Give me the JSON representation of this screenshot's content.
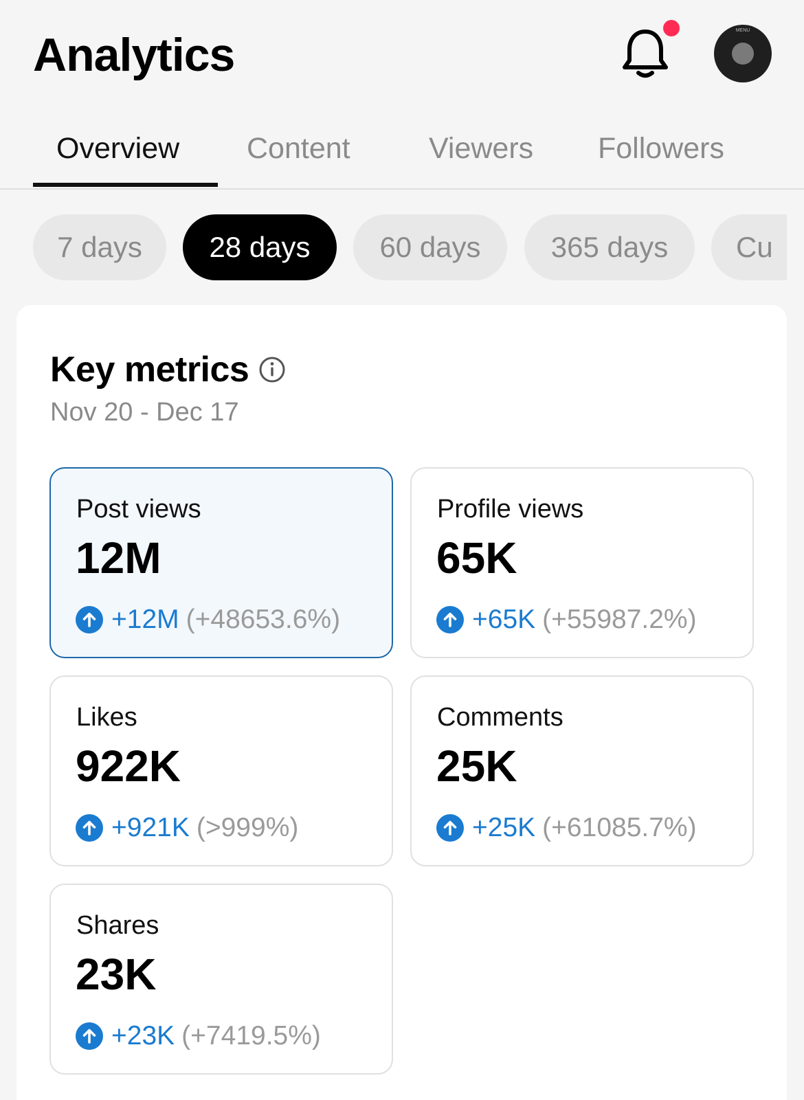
{
  "header": {
    "title": "Analytics",
    "notification_badge_color": "#fe2c55",
    "avatar_text": "MENU"
  },
  "tabs": [
    {
      "label": "Overview",
      "active": true
    },
    {
      "label": "Content",
      "active": false
    },
    {
      "label": "Viewers",
      "active": false
    },
    {
      "label": "Followers",
      "active": false
    }
  ],
  "date_chips": [
    {
      "label": "7 days",
      "selected": false
    },
    {
      "label": "28 days",
      "selected": true
    },
    {
      "label": "60 days",
      "selected": false
    },
    {
      "label": "365 days",
      "selected": false
    },
    {
      "label": "Cu",
      "selected": false
    }
  ],
  "key_metrics": {
    "title": "Key metrics",
    "date_range": "Nov 20 - Dec 17",
    "accent_color": "#1a7bd0",
    "items": [
      {
        "label": "Post views",
        "value": "12M",
        "delta": "+12M",
        "pct": "(+48653.6%)",
        "selected": true
      },
      {
        "label": "Profile views",
        "value": "65K",
        "delta": "+65K",
        "pct": "(+55987.2%)",
        "selected": false
      },
      {
        "label": "Likes",
        "value": "922K",
        "delta": "+921K",
        "pct": "(>999%)",
        "selected": false
      },
      {
        "label": "Comments",
        "value": "25K",
        "delta": "+25K",
        "pct": "(+61085.7%)",
        "selected": false
      },
      {
        "label": "Shares",
        "value": "23K",
        "delta": "+23K",
        "pct": "(+7419.5%)",
        "selected": false
      }
    ]
  },
  "icons": {
    "notifications": "bell-icon",
    "info": "info-icon",
    "trend_up": "arrow-up-circle-icon"
  }
}
